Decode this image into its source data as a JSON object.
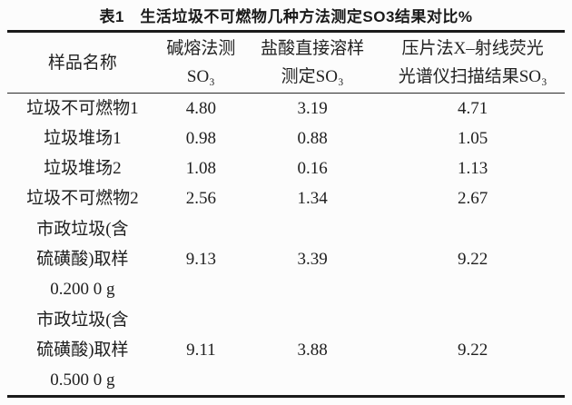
{
  "title": "表1　生活垃圾不可燃物几种方法测定SO3结果对比%",
  "colors": {
    "background": "#fcfcfc",
    "rule": "#1a1a1a",
    "text": "#1e1e1e"
  },
  "table": {
    "header": {
      "sample": "样品名称",
      "alkali_lines": [
        "碱熔法测",
        "SO₃"
      ],
      "hcl_lines": [
        "盐酸直接溶样",
        "测定SO₃"
      ],
      "xrf_lines": [
        "压片法X–射线荧光",
        "光谱仪扫描结果SO₃"
      ]
    },
    "rows": [
      {
        "name_lines": [
          "垃圾不可燃物1"
        ],
        "values": [
          "4.80",
          "3.19",
          "4.71"
        ]
      },
      {
        "name_lines": [
          "垃圾堆场1"
        ],
        "values": [
          "0.98",
          "0.88",
          "1.05"
        ]
      },
      {
        "name_lines": [
          "垃圾堆场2"
        ],
        "values": [
          "1.08",
          "0.16",
          "1.13"
        ]
      },
      {
        "name_lines": [
          "垃圾不可燃物2"
        ],
        "values": [
          "2.56",
          "1.34",
          "2.67"
        ]
      },
      {
        "name_lines": [
          "市政垃圾(含",
          "硫磺酸)取样",
          "0.200 0 g"
        ],
        "values": [
          "9.13",
          "3.39",
          "9.22"
        ]
      },
      {
        "name_lines": [
          "市政垃圾(含",
          "硫磺酸)取样",
          "0.500 0 g"
        ],
        "values": [
          "9.11",
          "3.88",
          "9.22"
        ]
      }
    ]
  },
  "chart_data": {
    "type": "table",
    "title": "表1 生活垃圾不可燃物几种方法测定SO3结果对比%",
    "columns": [
      "样品名称",
      "碱熔法测SO₃",
      "盐酸直接溶样测定SO₃",
      "压片法X–射线荧光光谱仪扫描结果SO₃"
    ],
    "rows": [
      [
        "垃圾不可燃物1",
        4.8,
        3.19,
        4.71
      ],
      [
        "垃圾堆场1",
        0.98,
        0.88,
        1.05
      ],
      [
        "垃圾堆场2",
        1.08,
        0.16,
        1.13
      ],
      [
        "垃圾不可燃物2",
        2.56,
        1.34,
        2.67
      ],
      [
        "市政垃圾(含硫磺酸)取样 0.200 0 g",
        9.13,
        3.39,
        9.22
      ],
      [
        "市政垃圾(含硫磺酸)取样 0.500 0 g",
        9.11,
        3.88,
        9.22
      ]
    ],
    "unit": "%"
  }
}
